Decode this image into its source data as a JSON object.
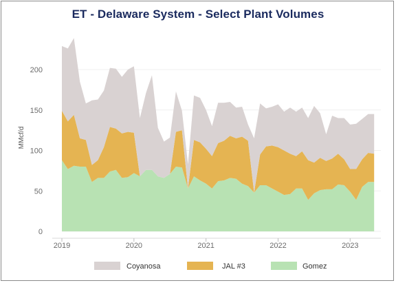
{
  "chart_data": {
    "type": "area",
    "title": "ET - Delaware System - Select Plant Volumes",
    "xlabel": "",
    "ylabel": "MMcf/d",
    "stacked": true,
    "ylim": [
      0,
      240
    ],
    "yticks": [
      0,
      50,
      100,
      150,
      200
    ],
    "xticks": [
      "2019",
      "2020",
      "2021",
      "2022",
      "2023"
    ],
    "xlim": [
      2019.0,
      2023.35
    ],
    "grid": true,
    "legend_position": "bottom",
    "x": [
      2019.0,
      2019.083,
      2019.167,
      2019.25,
      2019.333,
      2019.417,
      2019.5,
      2019.583,
      2019.667,
      2019.75,
      2019.833,
      2019.917,
      2020.0,
      2020.083,
      2020.167,
      2020.25,
      2020.333,
      2020.417,
      2020.5,
      2020.583,
      2020.667,
      2020.75,
      2020.833,
      2020.917,
      2021.0,
      2021.083,
      2021.167,
      2021.25,
      2021.333,
      2021.417,
      2021.5,
      2021.583,
      2021.667,
      2021.75,
      2021.833,
      2021.917,
      2022.0,
      2022.083,
      2022.167,
      2022.25,
      2022.333,
      2022.417,
      2022.5,
      2022.583,
      2022.667,
      2022.75,
      2022.833,
      2022.917,
      2023.0,
      2023.083,
      2023.167,
      2023.25,
      2023.333
    ],
    "series": [
      {
        "name": "Gomez",
        "color": "#b8e2b3",
        "values": [
          88,
          77,
          81,
          80,
          80,
          61,
          66,
          66,
          74,
          76,
          66,
          67,
          72,
          68,
          76,
          76,
          68,
          66,
          71,
          80,
          79,
          53,
          68,
          63,
          59,
          53,
          62,
          63,
          66,
          65,
          59,
          56,
          48,
          57,
          57,
          53,
          49,
          45,
          46,
          53,
          53,
          39,
          47,
          51,
          52,
          52,
          58,
          57,
          49,
          39,
          55,
          61,
          61
        ]
      },
      {
        "name": "JAL #3",
        "color": "#e5b452",
        "values": [
          61,
          59,
          63,
          35,
          33,
          21,
          22,
          38,
          55,
          51,
          55,
          56,
          50,
          0,
          0,
          0,
          0,
          0,
          0,
          43,
          46,
          0,
          45,
          47,
          43,
          40,
          47,
          49,
          52,
          50,
          58,
          56,
          0,
          38,
          48,
          53,
          55,
          55,
          50,
          40,
          46,
          49,
          38,
          40,
          35,
          38,
          38,
          32,
          28,
          38,
          34,
          36,
          35
        ]
      },
      {
        "name": "Coyanosa",
        "color": "#d9d2d2",
        "values": [
          80,
          90,
          95,
          70,
          45,
          80,
          75,
          70,
          73,
          74,
          70,
          77,
          82,
          72,
          95,
          117,
          60,
          45,
          45,
          50,
          24,
          30,
          55,
          55,
          48,
          37,
          50,
          47,
          42,
          38,
          37,
          20,
          67,
          63,
          47,
          48,
          53,
          48,
          57,
          55,
          54,
          52,
          70,
          55,
          33,
          53,
          44,
          51,
          55,
          56,
          50,
          48,
          49
        ]
      }
    ]
  }
}
